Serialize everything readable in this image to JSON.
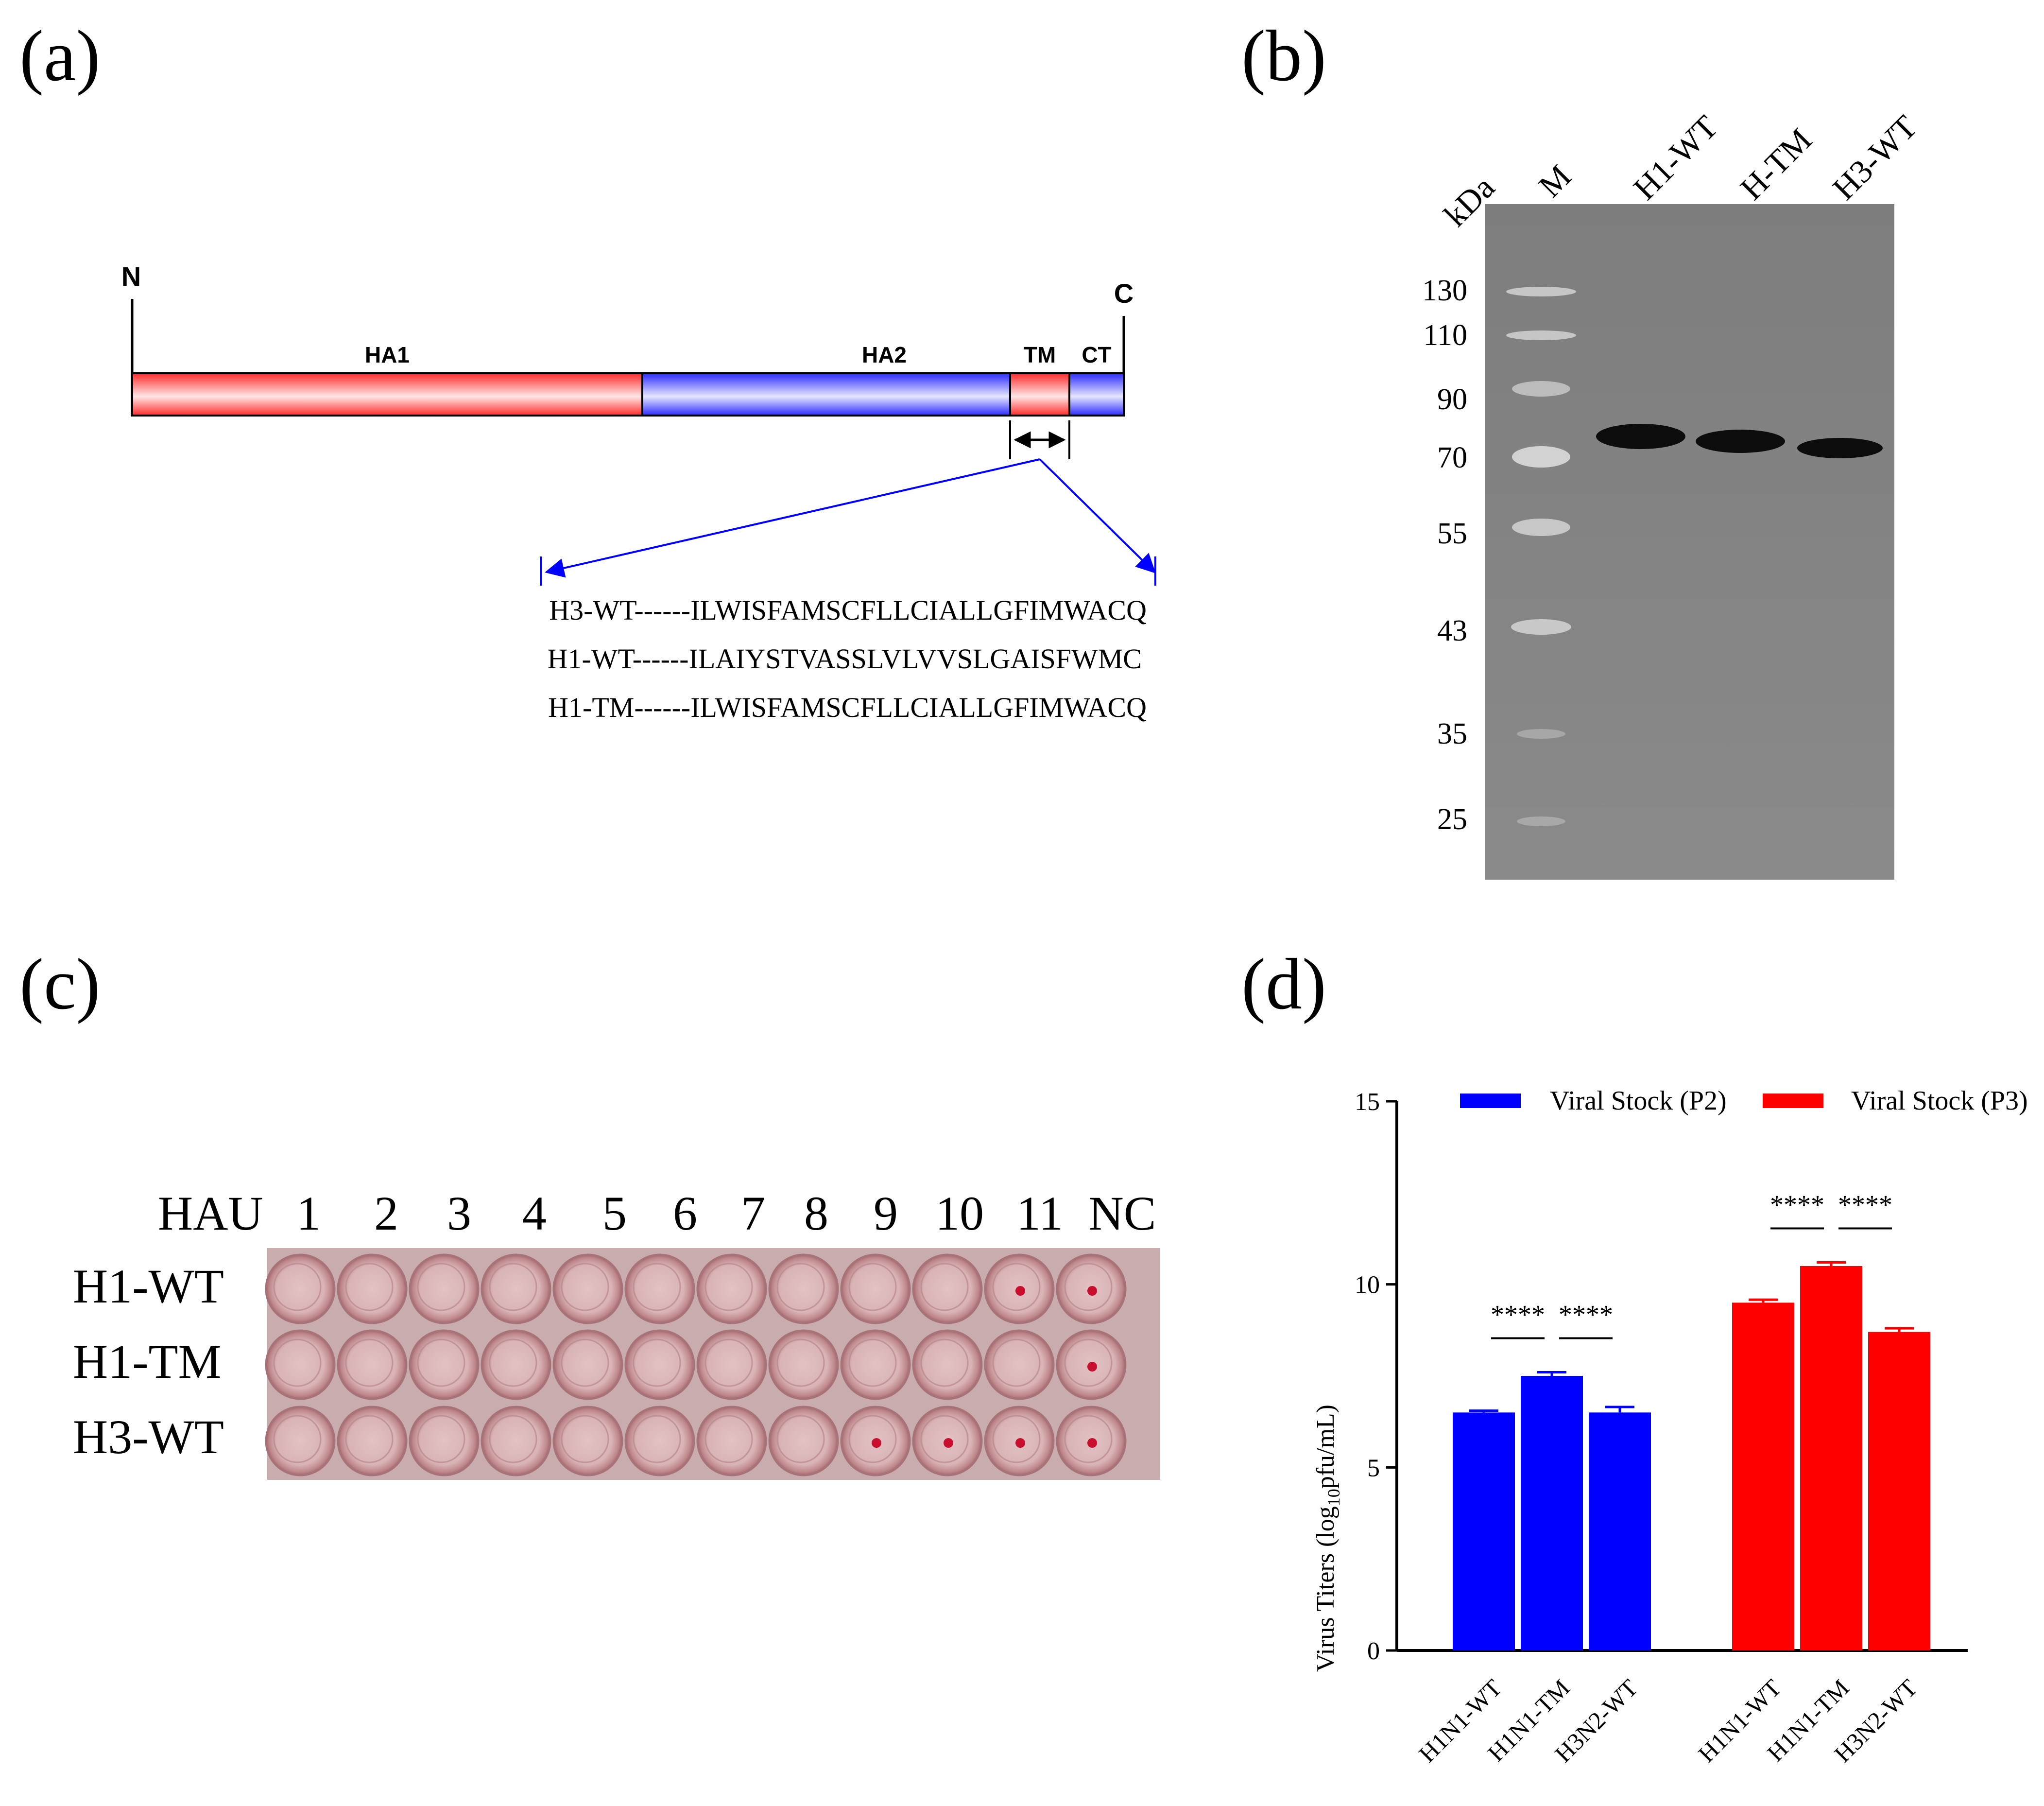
{
  "panels": {
    "a": {
      "label": "(a)",
      "n_label": "N",
      "c_label": "C",
      "domains": [
        {
          "name": "HA1",
          "color": "#ff2a2a"
        },
        {
          "name": "HA2",
          "color": "#2a2aff"
        },
        {
          "name": "TM",
          "color": "#ff2a2a"
        },
        {
          "name": "CT",
          "color": "#2a2aff"
        }
      ],
      "sequences": [
        {
          "name": "H3-WT",
          "dashes": "------",
          "seq": "ILWISFAMSCFLLCIALLGFIMWACQ"
        },
        {
          "name": "H1-WT",
          "dashes": "------",
          "seq": "ILAIYSTVASSLVLVVSLGAISFWMC"
        },
        {
          "name": "H1-TM",
          "dashes": "------",
          "seq": "ILWISFAMSCFLLCIALLGFIMWACQ"
        }
      ]
    },
    "b": {
      "label": "(b)",
      "headers": [
        "kDa",
        "M",
        "H1-WT",
        "H-TM",
        "H3-WT"
      ],
      "markers": [
        "130",
        "110",
        "90",
        "70",
        "55",
        "43",
        "35",
        "25"
      ]
    },
    "c": {
      "label": "(c)",
      "hau_label": "HAU",
      "columns": [
        "1",
        "2",
        "3",
        "4",
        "5",
        "6",
        "7",
        "8",
        "9",
        "10",
        "11",
        "NC"
      ],
      "rows": [
        {
          "name": "H1-WT",
          "button_wells": [
            11,
            12
          ]
        },
        {
          "name": "H1-TM",
          "button_wells": [
            12
          ]
        },
        {
          "name": "H3-WT",
          "button_wells": [
            9,
            10,
            11,
            12
          ]
        }
      ]
    },
    "d": {
      "label": "(d)",
      "significance": "****"
    }
  },
  "chart_data": {
    "type": "bar",
    "ylabel_main": "Virus Titers (log",
    "ylabel_sub": "10",
    "ylabel_tail": "pfu/mL)",
    "ylim": [
      0,
      15
    ],
    "yticks": [
      "0",
      "5",
      "10",
      "15"
    ],
    "legend_position": "top",
    "series": [
      {
        "name": "Viral Stock (P2)",
        "color": "#0000ff",
        "categories": [
          "H1N1-WT",
          "H1N1-TM",
          "H3N2-WT"
        ],
        "values": [
          6.5,
          7.5,
          6.5
        ],
        "errors": [
          0.05,
          0.1,
          0.15
        ]
      },
      {
        "name": "Viral Stock (P3)",
        "color": "#ff0000",
        "categories": [
          "H1N1-WT",
          "H1N1-TM",
          "H3N2-WT"
        ],
        "values": [
          9.5,
          10.5,
          8.7
        ],
        "errors": [
          0.08,
          0.1,
          0.1
        ]
      }
    ],
    "annotations": [
      {
        "series": 0,
        "from": 0,
        "to": 1,
        "text": "****"
      },
      {
        "series": 0,
        "from": 1,
        "to": 2,
        "text": "****"
      },
      {
        "series": 1,
        "from": 0,
        "to": 1,
        "text": "****"
      },
      {
        "series": 1,
        "from": 1,
        "to": 2,
        "text": "****"
      }
    ]
  }
}
